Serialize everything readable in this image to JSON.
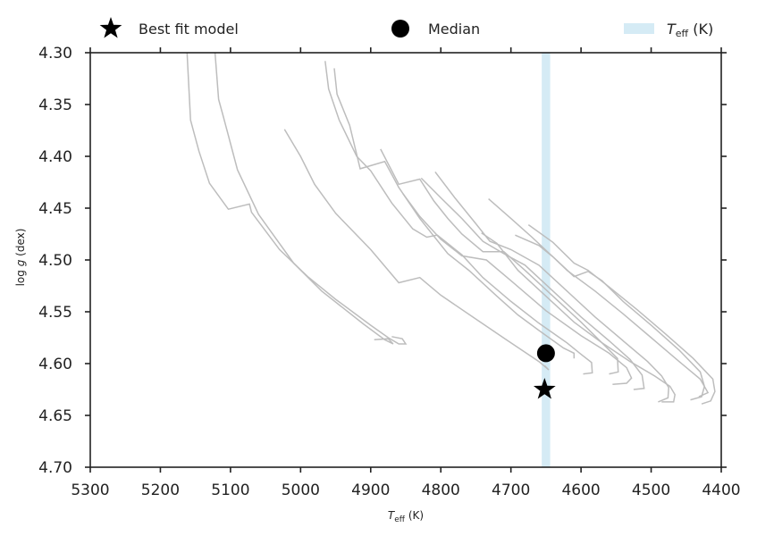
{
  "chart_data": {
    "type": "line",
    "xlabel": {
      "main": "T",
      "sub": "eff",
      "unit": " (K)"
    },
    "ylabel": {
      "main": "log ",
      "ital": "g",
      "unit": " (dex)"
    },
    "xlim": [
      5300,
      4400
    ],
    "ylim": [
      4.7,
      4.3
    ],
    "x_ticks": [
      5300,
      5200,
      5100,
      5000,
      4900,
      4800,
      4700,
      4600,
      4500,
      4400
    ],
    "x_tick_labels": [
      "5300",
      "5200",
      "5100",
      "5000",
      "4900",
      "4800",
      "4700",
      "4600",
      "4500",
      "4400"
    ],
    "y_ticks": [
      4.3,
      4.35,
      4.4,
      4.45,
      4.5,
      4.55,
      4.6,
      4.65,
      4.7
    ],
    "y_tick_labels": [
      "4.30",
      "4.35",
      "4.40",
      "4.45",
      "4.50",
      "4.55",
      "4.60",
      "4.65",
      "4.70"
    ],
    "grid": false,
    "legend_position": "top",
    "legend": [
      {
        "marker": "star",
        "label": "Best fit model"
      },
      {
        "marker": "circle",
        "label": "Median"
      },
      {
        "marker": "band",
        "label_main": "T",
        "label_sub": "eff",
        "label_unit": " (K)"
      }
    ],
    "teff_band": {
      "center": 4650,
      "half_width": 6,
      "color": "#d5ebf5"
    },
    "best_fit": {
      "x": 4652,
      "y": 4.625
    },
    "median": {
      "x": 4650,
      "y": 4.59
    },
    "colors": {
      "tracks": "#bdbdbd",
      "markers": "#000000",
      "axes": "#222222"
    },
    "series": [
      {
        "points": [
          [
            5162,
            4.3
          ],
          [
            5157,
            4.365
          ],
          [
            5145,
            4.395
          ],
          [
            5130,
            4.426
          ],
          [
            5103,
            4.451
          ],
          [
            5073,
            4.446
          ],
          [
            5070,
            4.454
          ],
          [
            5030,
            4.49
          ],
          [
            4990,
            4.516
          ],
          [
            4950,
            4.538
          ],
          [
            4900,
            4.563
          ],
          [
            4875,
            4.575
          ],
          [
            4860,
            4.581
          ],
          [
            4850,
            4.581
          ],
          [
            4855,
            4.576
          ],
          [
            4870,
            4.574
          ]
        ]
      },
      {
        "points": [
          [
            5122,
            4.3
          ],
          [
            5117,
            4.345
          ],
          [
            5110,
            4.362
          ],
          [
            5090,
            4.413
          ],
          [
            5060,
            4.456
          ],
          [
            5010,
            4.503
          ],
          [
            4970,
            4.53
          ],
          [
            4910,
            4.562
          ],
          [
            4880,
            4.577
          ],
          [
            4868,
            4.581
          ],
          [
            4875,
            4.576
          ],
          [
            4895,
            4.577
          ]
        ]
      },
      {
        "points": [
          [
            5023,
            4.374
          ],
          [
            5000,
            4.4
          ],
          [
            4980,
            4.427
          ],
          [
            4950,
            4.455
          ],
          [
            4900,
            4.49
          ],
          [
            4860,
            4.522
          ],
          [
            4830,
            4.517
          ],
          [
            4800,
            4.534
          ],
          [
            4750,
            4.557
          ],
          [
            4700,
            4.58
          ],
          [
            4660,
            4.598
          ],
          [
            4646,
            4.606
          ],
          [
            4652,
            4.602
          ]
        ]
      },
      {
        "points": [
          [
            4952,
            4.315
          ],
          [
            4948,
            4.34
          ],
          [
            4930,
            4.37
          ],
          [
            4915,
            4.412
          ],
          [
            4880,
            4.405
          ],
          [
            4860,
            4.43
          ],
          [
            4830,
            4.46
          ],
          [
            4790,
            4.494
          ],
          [
            4760,
            4.51
          ],
          [
            4720,
            4.535
          ],
          [
            4690,
            4.553
          ],
          [
            4660,
            4.568
          ],
          [
            4625,
            4.585
          ],
          [
            4610,
            4.59
          ],
          [
            4610,
            4.595
          ]
        ]
      },
      {
        "points": [
          [
            4965,
            4.308
          ],
          [
            4960,
            4.335
          ],
          [
            4945,
            4.365
          ],
          [
            4920,
            4.4
          ],
          [
            4900,
            4.414
          ],
          [
            4870,
            4.445
          ],
          [
            4840,
            4.47
          ],
          [
            4820,
            4.478
          ],
          [
            4805,
            4.476
          ],
          [
            4770,
            4.495
          ],
          [
            4740,
            4.517
          ],
          [
            4700,
            4.54
          ],
          [
            4660,
            4.561
          ],
          [
            4620,
            4.58
          ],
          [
            4600,
            4.591
          ],
          [
            4585,
            4.599
          ],
          [
            4584,
            4.609
          ],
          [
            4597,
            4.61
          ]
        ]
      },
      {
        "points": [
          [
            4886,
            4.393
          ],
          [
            4860,
            4.427
          ],
          [
            4830,
            4.422
          ],
          [
            4810,
            4.443
          ],
          [
            4790,
            4.46
          ],
          [
            4770,
            4.475
          ],
          [
            4740,
            4.492
          ],
          [
            4710,
            4.492
          ],
          [
            4680,
            4.51
          ],
          [
            4640,
            4.535
          ],
          [
            4600,
            4.56
          ],
          [
            4570,
            4.58
          ],
          [
            4548,
            4.595
          ],
          [
            4547,
            4.608
          ],
          [
            4560,
            4.61
          ]
        ]
      },
      {
        "points": [
          [
            4854,
            4.436
          ],
          [
            4830,
            4.458
          ],
          [
            4800,
            4.48
          ],
          [
            4770,
            4.496
          ],
          [
            4735,
            4.5
          ],
          [
            4700,
            4.52
          ],
          [
            4650,
            4.549
          ],
          [
            4600,
            4.573
          ],
          [
            4560,
            4.59
          ],
          [
            4535,
            4.604
          ],
          [
            4528,
            4.614
          ],
          [
            4535,
            4.619
          ],
          [
            4555,
            4.62
          ]
        ]
      },
      {
        "points": [
          [
            4828,
            4.421
          ],
          [
            4800,
            4.44
          ],
          [
            4770,
            4.46
          ],
          [
            4740,
            4.482
          ],
          [
            4710,
            4.494
          ],
          [
            4680,
            4.505
          ],
          [
            4640,
            4.53
          ],
          [
            4600,
            4.555
          ],
          [
            4560,
            4.578
          ],
          [
            4530,
            4.596
          ],
          [
            4513,
            4.611
          ],
          [
            4510,
            4.624
          ],
          [
            4525,
            4.625
          ]
        ]
      },
      {
        "points": [
          [
            4808,
            4.415
          ],
          [
            4780,
            4.44
          ],
          [
            4750,
            4.465
          ],
          [
            4730,
            4.482
          ],
          [
            4700,
            4.49
          ],
          [
            4660,
            4.505
          ],
          [
            4620,
            4.53
          ],
          [
            4580,
            4.555
          ],
          [
            4540,
            4.578
          ],
          [
            4505,
            4.598
          ],
          [
            4485,
            4.612
          ],
          [
            4475,
            4.623
          ],
          [
            4476,
            4.633
          ],
          [
            4490,
            4.637
          ]
        ]
      },
      {
        "points": [
          [
            4742,
            4.474
          ],
          [
            4720,
            4.484
          ],
          [
            4690,
            4.51
          ],
          [
            4650,
            4.535
          ],
          [
            4610,
            4.56
          ],
          [
            4570,
            4.58
          ],
          [
            4530,
            4.598
          ],
          [
            4495,
            4.612
          ],
          [
            4473,
            4.622
          ],
          [
            4466,
            4.63
          ],
          [
            4468,
            4.637
          ],
          [
            4485,
            4.637
          ]
        ]
      },
      {
        "points": [
          [
            4732,
            4.441
          ],
          [
            4700,
            4.46
          ],
          [
            4670,
            4.478
          ],
          [
            4640,
            4.497
          ],
          [
            4610,
            4.516
          ],
          [
            4590,
            4.511
          ],
          [
            4570,
            4.52
          ],
          [
            4540,
            4.54
          ],
          [
            4500,
            4.563
          ],
          [
            4460,
            4.587
          ],
          [
            4430,
            4.608
          ],
          [
            4424,
            4.622
          ],
          [
            4428,
            4.632
          ],
          [
            4444,
            4.635
          ]
        ]
      },
      {
        "points": [
          [
            4694,
            4.476
          ],
          [
            4660,
            4.486
          ],
          [
            4640,
            4.497
          ],
          [
            4620,
            4.51
          ],
          [
            4580,
            4.53
          ],
          [
            4540,
            4.552
          ],
          [
            4500,
            4.575
          ],
          [
            4460,
            4.598
          ],
          [
            4430,
            4.615
          ],
          [
            4419,
            4.628
          ],
          [
            4432,
            4.632
          ]
        ]
      },
      {
        "points": [
          [
            4675,
            4.466
          ],
          [
            4640,
            4.483
          ],
          [
            4610,
            4.503
          ],
          [
            4590,
            4.51
          ],
          [
            4560,
            4.526
          ],
          [
            4520,
            4.548
          ],
          [
            4480,
            4.571
          ],
          [
            4440,
            4.595
          ],
          [
            4412,
            4.615
          ],
          [
            4409,
            4.627
          ],
          [
            4415,
            4.636
          ],
          [
            4428,
            4.639
          ]
        ]
      }
    ]
  }
}
